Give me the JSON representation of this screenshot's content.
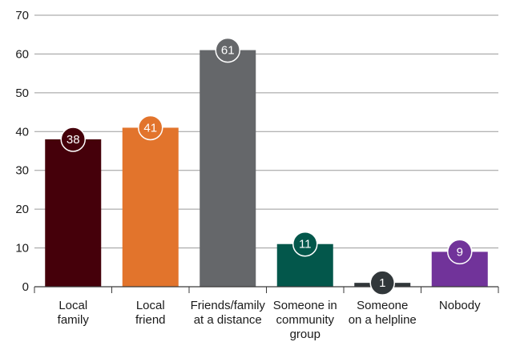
{
  "chart_data": {
    "type": "bar",
    "categories": [
      [
        "Local",
        "family"
      ],
      [
        "Local",
        "friend"
      ],
      [
        "Friends/family",
        "at a distance"
      ],
      [
        "Someone in",
        "community",
        "group"
      ],
      [
        "Someone",
        "on a helpline"
      ],
      [
        "Nobody"
      ]
    ],
    "values": [
      38,
      41,
      61,
      11,
      1,
      9
    ],
    "colors": [
      "#45000a",
      "#e2742c",
      "#65676a",
      "#03574b",
      "#31373a",
      "#71339a"
    ],
    "data_labels": [
      "38",
      "41",
      "61",
      "11",
      "1",
      "9"
    ],
    "yticks": [
      0,
      10,
      20,
      30,
      40,
      50,
      60,
      70
    ],
    "ylim": [
      0,
      70
    ],
    "title": "",
    "xlabel": "",
    "ylabel": "",
    "grid": "horizontal",
    "legend": "none"
  }
}
